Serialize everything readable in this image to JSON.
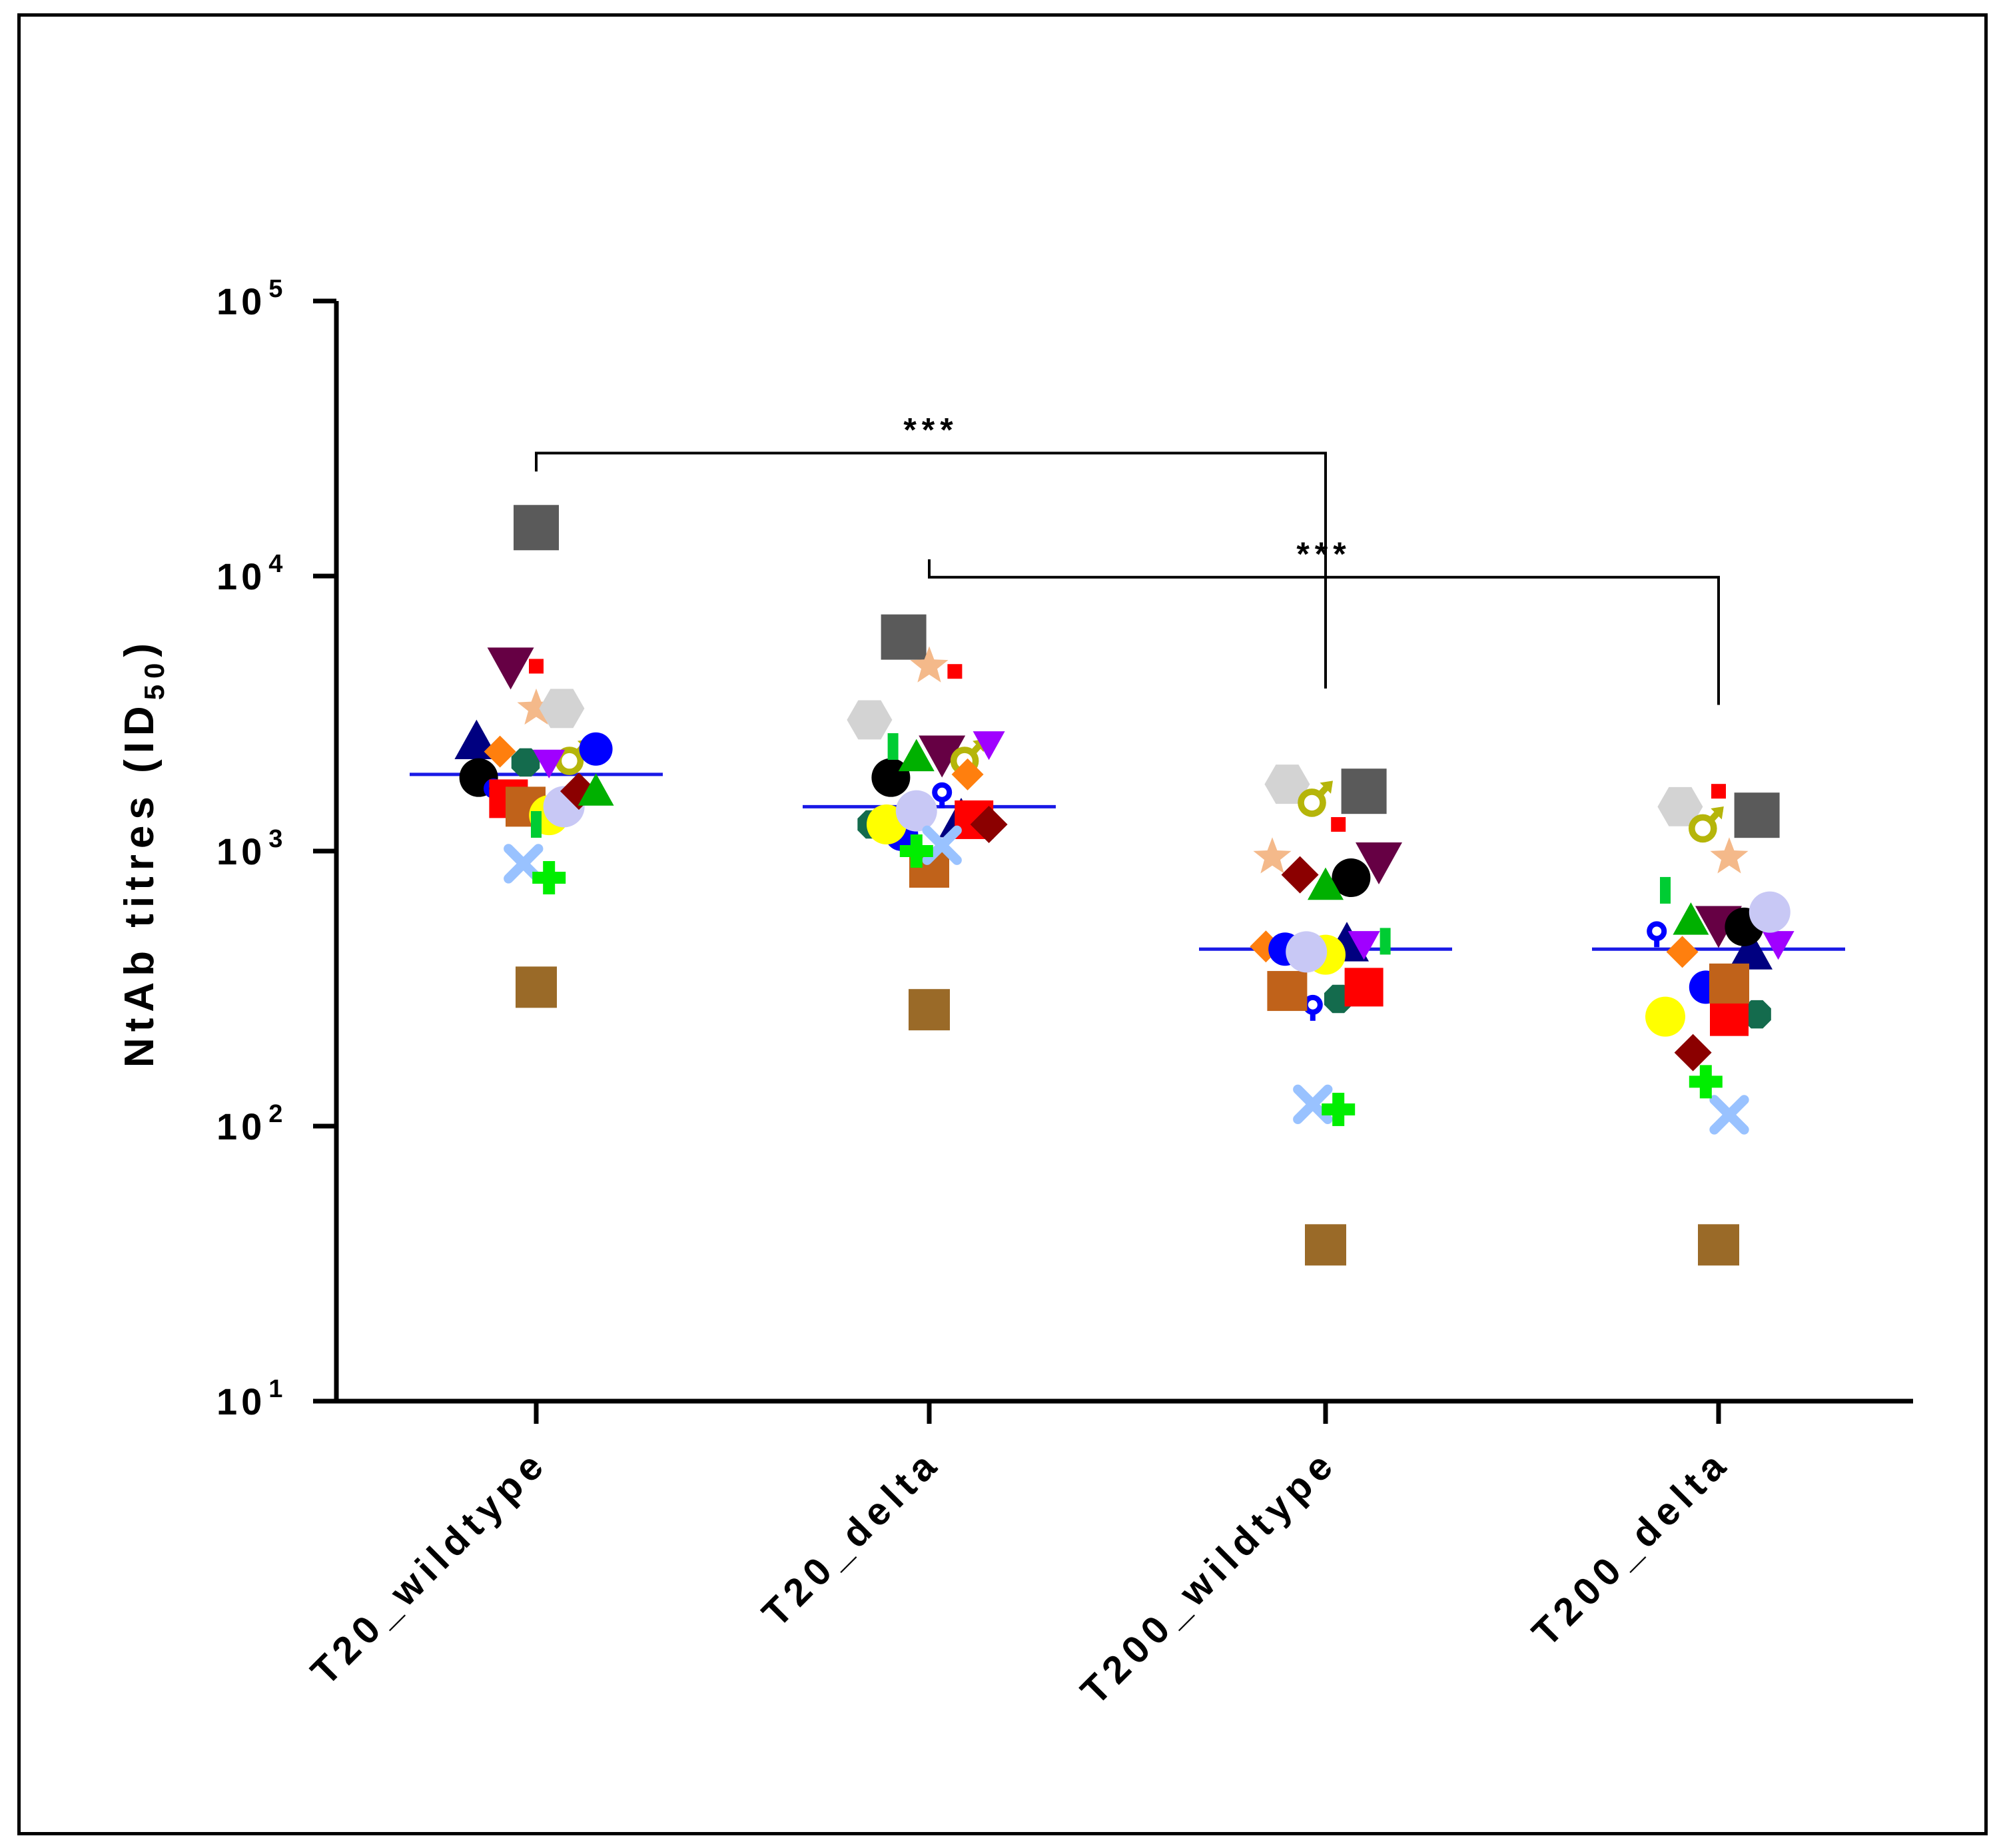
{
  "chart_data": {
    "type": "scatter",
    "title": "",
    "ylabel": "NtAb titres (ID",
    "ylabel_sub": "50",
    "ylabel_close": ")",
    "yscale": "log",
    "ylim": [
      10,
      100000
    ],
    "yticks": [
      {
        "value": 10,
        "base": "10",
        "exp": "1"
      },
      {
        "value": 100,
        "base": "10",
        "exp": "2"
      },
      {
        "value": 1000,
        "base": "10",
        "exp": "3"
      },
      {
        "value": 10000,
        "base": "10",
        "exp": "4"
      },
      {
        "value": 100000,
        "base": "10",
        "exp": "5"
      }
    ],
    "categories": [
      "T20_wildtype",
      "T20_delta",
      "T200_wildtype",
      "T200_delta"
    ],
    "medians": [
      1900,
      1450,
      440,
      440
    ],
    "median_color": "#1a1ae6",
    "significance": [
      {
        "from": 0,
        "to": 2,
        "label": "***",
        "level": 28000,
        "from_end": 24000,
        "to_end": 3900
      },
      {
        "from": 1,
        "to": 3,
        "label": "***",
        "level": 9900,
        "from_end": 11500,
        "to_end": 3400
      }
    ],
    "subjects": [
      {
        "shape": "square",
        "color": "#5a5a5a",
        "size": 68,
        "values": [
          15000,
          6000,
          1650,
          1350
        ],
        "offsets": [
          0,
          -0.12,
          0.18,
          0.18
        ]
      },
      {
        "shape": "square",
        "color": "#9a6a28",
        "size": 62,
        "values": [
          320,
          265,
          37,
          37
        ],
        "offsets": [
          0,
          0,
          0,
          0
        ]
      },
      {
        "shape": "triangle-down",
        "color": "#660044",
        "size": 70,
        "values": [
          4700,
          2250,
          920,
          540
        ],
        "offsets": [
          -0.12,
          0.06,
          0.25,
          0
        ]
      },
      {
        "shape": "square",
        "color": "#ff0000",
        "size": 22,
        "values": [
          4700,
          4500,
          1250,
          1650
        ],
        "offsets": [
          0,
          0.12,
          0.06,
          0
        ]
      },
      {
        "shape": "star",
        "color": "#f4b98a",
        "size": 60,
        "values": [
          3300,
          4700,
          950,
          950
        ],
        "offsets": [
          0,
          0,
          -0.25,
          0.05
        ]
      },
      {
        "shape": "hexagon",
        "color": "#d3d3d3",
        "size": 68,
        "values": [
          3300,
          3000,
          1750,
          1450
        ],
        "offsets": [
          0.12,
          -0.28,
          -0.18,
          -0.18
        ]
      },
      {
        "shape": "male",
        "color": "#b5b50a",
        "size": 60,
        "values": [
          2200,
          2200,
          1550,
          1250
        ],
        "offsets": [
          0.17,
          0.18,
          -0.05,
          -0.06
        ]
      },
      {
        "shape": "triangle-up",
        "color": "#000080",
        "size": 66,
        "values": [
          2500,
          1300,
          460,
          430
        ],
        "offsets": [
          -0.28,
          0.15,
          0.1,
          0.15
        ]
      },
      {
        "shape": "diamond",
        "color": "#ff7f0e",
        "size": 48,
        "values": [
          2300,
          1900,
          450,
          430
        ],
        "offsets": [
          -0.17,
          0.18,
          -0.28,
          -0.17
        ]
      },
      {
        "shape": "octagon",
        "color": "#146b4d",
        "size": 46,
        "values": [
          2100,
          1250,
          290,
          255
        ],
        "offsets": [
          -0.05,
          -0.27,
          0.06,
          0.18
        ]
      },
      {
        "shape": "triangle-down",
        "color": "#a000ff",
        "size": 48,
        "values": [
          2100,
          2450,
          460,
          460
        ],
        "offsets": [
          0.06,
          0.28,
          0.18,
          0.28
        ]
      },
      {
        "shape": "circle",
        "color": "#0000ff",
        "size": 50,
        "values": [
          2350,
          1150,
          440,
          320
        ],
        "offsets": [
          0.28,
          -0.13,
          -0.19,
          -0.06
        ]
      },
      {
        "shape": "circle",
        "color": "#000000",
        "size": 58,
        "values": [
          1850,
          1850,
          800,
          530
        ],
        "offsets": [
          -0.27,
          -0.18,
          0.12,
          0.12
        ]
      },
      {
        "shape": "female",
        "color": "#0000ff",
        "size": 40,
        "values": [
          1650,
          1600,
          270,
          500
        ],
        "offsets": [
          -0.2,
          0.06,
          -0.06,
          -0.29
        ]
      },
      {
        "shape": "square",
        "color": "#ff0000",
        "size": 58,
        "values": [
          1550,
          1300,
          320,
          250
        ],
        "offsets": [
          -0.13,
          0.21,
          0.18,
          0.05
        ]
      },
      {
        "shape": "square",
        "color": "#c0621a",
        "size": 60,
        "values": [
          1450,
          870,
          310,
          330
        ],
        "offsets": [
          -0.05,
          0,
          -0.18,
          0.05
        ]
      },
      {
        "shape": "circle",
        "color": "#ffff00",
        "size": 60,
        "values": [
          1350,
          1250,
          420,
          250
        ],
        "offsets": [
          0.06,
          -0.2,
          0,
          -0.25
        ]
      },
      {
        "shape": "circle",
        "color": "#c8c8f5",
        "size": 62,
        "values": [
          1450,
          1400,
          430,
          600
        ],
        "offsets": [
          0.13,
          -0.06,
          -0.09,
          0.24
        ]
      },
      {
        "shape": "diamond",
        "color": "#8b0000",
        "size": 56,
        "values": [
          1650,
          1250,
          820,
          185
        ],
        "offsets": [
          0.2,
          0.28,
          -0.12,
          -0.12
        ]
      },
      {
        "shape": "triangle-up",
        "color": "#00b000",
        "size": 54,
        "values": [
          1650,
          2200,
          750,
          560
        ],
        "offsets": [
          0.28,
          -0.06,
          0,
          -0.13
        ]
      },
      {
        "shape": "bar",
        "color": "#00cc33",
        "size": 40,
        "values": [
          1250,
          2400,
          470,
          720
        ],
        "offsets": [
          0,
          -0.17,
          0.28,
          -0.25
        ]
      },
      {
        "shape": "cross",
        "color": "#99c2ff",
        "size": 56,
        "values": [
          900,
          1050,
          120,
          110
        ],
        "offsets": [
          -0.06,
          0.06,
          -0.06,
          0.05
        ]
      },
      {
        "shape": "plus",
        "color": "#00ee00",
        "size": 50,
        "values": [
          800,
          1000,
          115,
          145
        ],
        "offsets": [
          0.06,
          -0.06,
          0.06,
          -0.06
        ]
      }
    ]
  }
}
